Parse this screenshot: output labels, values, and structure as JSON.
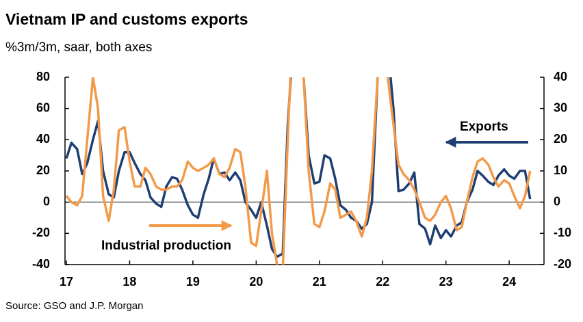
{
  "chart_data": {
    "type": "line",
    "title": "Vietnam IP and customs exports",
    "subtitle": "%3m/3m, saar, both axes",
    "source": "Source: GSO and J.P. Morgan",
    "annotations": [
      "Exports",
      "Industrial production"
    ],
    "x": [
      17,
      17.08,
      17.17,
      17.25,
      17.33,
      17.42,
      17.5,
      17.58,
      17.67,
      17.75,
      17.83,
      17.92,
      18,
      18.08,
      18.17,
      18.25,
      18.33,
      18.42,
      18.5,
      18.58,
      18.67,
      18.75,
      18.83,
      18.92,
      19,
      19.08,
      19.17,
      19.25,
      19.33,
      19.42,
      19.5,
      19.58,
      19.67,
      19.75,
      19.83,
      19.92,
      20,
      20.08,
      20.17,
      20.25,
      20.33,
      20.42,
      20.5,
      20.58,
      20.67,
      20.75,
      20.83,
      20.92,
      21,
      21.08,
      21.17,
      21.25,
      21.33,
      21.42,
      21.5,
      21.58,
      21.67,
      21.75,
      21.83,
      21.92,
      22,
      22.08,
      22.17,
      22.25,
      22.33,
      22.42,
      22.5,
      22.58,
      22.67,
      22.75,
      22.83,
      22.92,
      23,
      23.08,
      23.17,
      23.25,
      23.33,
      23.42,
      23.5,
      23.58,
      23.67,
      23.75,
      23.83,
      23.92,
      24,
      24.08,
      24.17,
      24.25,
      24.33
    ],
    "series": [
      {
        "name": "Exports",
        "color": "#1f3f73",
        "axis": "y",
        "values": [
          28,
          38,
          34,
          18,
          25,
          40,
          52,
          20,
          5,
          3,
          20,
          32,
          32,
          25,
          18,
          14,
          3,
          -1,
          -3,
          10,
          16,
          15,
          8,
          -2,
          -8,
          -10,
          5,
          15,
          28,
          18,
          19,
          14,
          19,
          14,
          0,
          -5,
          -10,
          0,
          -15,
          -30,
          -35,
          -33,
          50,
          100,
          100,
          80,
          30,
          12,
          13,
          30,
          28,
          15,
          -2,
          -5,
          -10,
          -12,
          -17,
          -14,
          0,
          80,
          100,
          100,
          60,
          7,
          8,
          12,
          19,
          -14,
          -17,
          -27,
          -15,
          -23,
          -18,
          -22,
          -15,
          -13,
          0,
          8,
          20,
          17,
          13,
          11,
          17,
          21,
          17,
          15,
          20,
          20,
          2
        ]
      },
      {
        "name": "Industrial production",
        "color": "#f39a4a",
        "axis": "y2",
        "values": [
          2,
          0,
          -1,
          2,
          20,
          40,
          30,
          2,
          -6,
          4,
          23,
          24,
          13,
          5,
          5,
          11,
          9,
          5,
          4,
          4,
          5,
          5,
          7,
          13,
          11,
          10,
          11,
          12,
          14,
          9,
          8,
          11,
          17,
          16,
          5,
          -13,
          -14,
          -3,
          10,
          -10,
          -20,
          -22,
          20,
          60,
          80,
          40,
          10,
          -7,
          -8,
          -3,
          6,
          4,
          -5,
          -4,
          -3,
          -6,
          -11,
          -5,
          10,
          40,
          60,
          40,
          25,
          12,
          9,
          7,
          4,
          0,
          -5,
          -6,
          -4,
          0,
          2,
          -2,
          -9,
          -8,
          0,
          8,
          13,
          14,
          12,
          8,
          5,
          7,
          6,
          2,
          -2,
          2,
          10
        ]
      }
    ],
    "xlim": [
      17,
      24.55
    ],
    "xticks": [
      17,
      18,
      19,
      20,
      21,
      22,
      23,
      24
    ],
    "ylim": [
      -40,
      80
    ],
    "yticks": [
      -40,
      -20,
      0,
      20,
      40,
      60,
      80
    ],
    "y2lim": [
      -20,
      40
    ],
    "y2ticks": [
      -20,
      -10,
      0,
      10,
      20,
      30,
      40
    ]
  }
}
